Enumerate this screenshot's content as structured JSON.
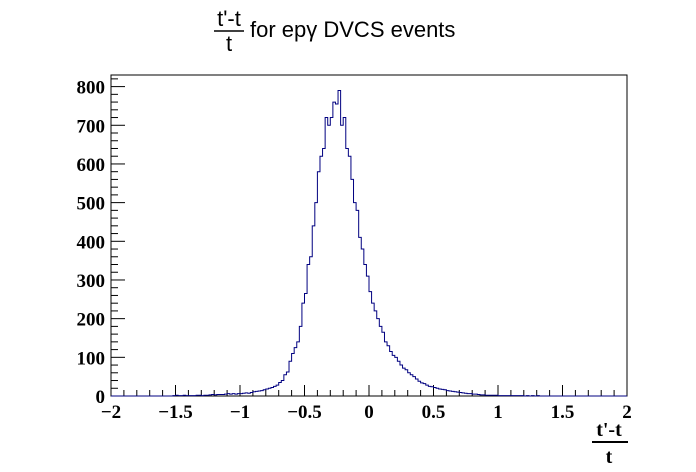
{
  "chart_data": {
    "type": "histogram",
    "title": {
      "numerator": "t'-t",
      "denominator": "t",
      "suffix": "for epγ DVCS events"
    },
    "xlabel": {
      "numerator": "t'-t",
      "denominator": "t"
    },
    "ylabel": "",
    "xlim": [
      -2,
      2
    ],
    "ylim": [
      0,
      830
    ],
    "x_ticks": [
      -2,
      -1.5,
      -1,
      -0.5,
      0,
      0.5,
      1,
      1.5,
      2
    ],
    "x_tick_labels": [
      "−2",
      "−1.5",
      "−1",
      "−0.5",
      "0",
      "0.5",
      "1",
      "1.5",
      "2"
    ],
    "y_ticks": [
      0,
      100,
      200,
      300,
      400,
      500,
      600,
      700,
      800
    ],
    "y_tick_labels": [
      "0",
      "100",
      "200",
      "300",
      "400",
      "500",
      "600",
      "700",
      "800"
    ],
    "bin_width": 0.02,
    "bin_start": -2.0,
    "line_color": "#000080",
    "series": [
      {
        "values": [
          0,
          0,
          0,
          0,
          0,
          0,
          0,
          0,
          0,
          0,
          0,
          0,
          0,
          0,
          0,
          0,
          0,
          0,
          0,
          0,
          0,
          0,
          0,
          0,
          1,
          2,
          1,
          1,
          2,
          1,
          1,
          1,
          1,
          2,
          2,
          1,
          2,
          2,
          3,
          4,
          3,
          4,
          4,
          4,
          5,
          6,
          5,
          6,
          5,
          6,
          6,
          7,
          8,
          7,
          9,
          11,
          12,
          13,
          14,
          16,
          18,
          20,
          22,
          25,
          28,
          35,
          40,
          55,
          62,
          90,
          110,
          125,
          140,
          180,
          240,
          265,
          340,
          360,
          440,
          500,
          580,
          620,
          640,
          720,
          700,
          720,
          760,
          755,
          790,
          700,
          720,
          640,
          620,
          560,
          500,
          480,
          410,
          380,
          340,
          310,
          270,
          240,
          220,
          200,
          180,
          165,
          140,
          130,
          115,
          105,
          100,
          90,
          80,
          72,
          68,
          60,
          55,
          50,
          44,
          38,
          34,
          32,
          28,
          25,
          24,
          22,
          20,
          18,
          17,
          16,
          14,
          13,
          12,
          11,
          10,
          9,
          8,
          7,
          6,
          6,
          5,
          5,
          4,
          3,
          3,
          2,
          2,
          2,
          2,
          2,
          1,
          1,
          1,
          1,
          1,
          1,
          1,
          1,
          1,
          1,
          0,
          1,
          0,
          1,
          0,
          1,
          0,
          0,
          0,
          0,
          0,
          0,
          0,
          0,
          0,
          0,
          0,
          0,
          0,
          0,
          0,
          0,
          0,
          0,
          0,
          0,
          0,
          0,
          0,
          0,
          0,
          0,
          0,
          0,
          0,
          0,
          0,
          0,
          0,
          0
        ]
      }
    ]
  }
}
